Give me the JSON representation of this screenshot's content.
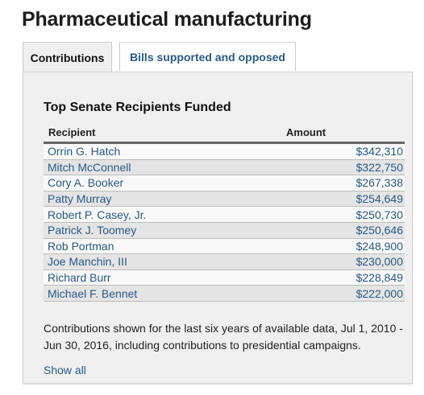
{
  "page_title": "Pharmaceutical manufacturing",
  "tabs": [
    {
      "label": "Contributions"
    },
    {
      "label": "Bills supported and opposed"
    }
  ],
  "section_title": "Top Senate Recipients Funded",
  "table": {
    "headers": [
      "Recipient",
      "Amount"
    ],
    "rows": [
      {
        "name": "Orrin G. Hatch",
        "amount": "$342,310"
      },
      {
        "name": "Mitch McConnell",
        "amount": "$322,750"
      },
      {
        "name": "Cory A. Booker",
        "amount": "$267,338"
      },
      {
        "name": "Patty Murray",
        "amount": "$254,649"
      },
      {
        "name": "Robert P. Casey, Jr.",
        "amount": "$250,730"
      },
      {
        "name": "Patrick J. Toomey",
        "amount": "$250,646"
      },
      {
        "name": "Rob Portman",
        "amount": "$248,900"
      },
      {
        "name": "Joe Manchin, III",
        "amount": "$230,000"
      },
      {
        "name": "Richard Burr",
        "amount": "$228,849"
      },
      {
        "name": "Michael F. Bennet",
        "amount": "$222,000"
      }
    ]
  },
  "note": "Contributions shown for the last six years of available data, Jul 1, 2010 - Jun 30, 2016, including contributions to presidential campaigns.",
  "show_all": "Show all",
  "colors": {
    "link": "#2a5a86",
    "panel_bg": "#efefef",
    "header_rule": "#666666"
  }
}
